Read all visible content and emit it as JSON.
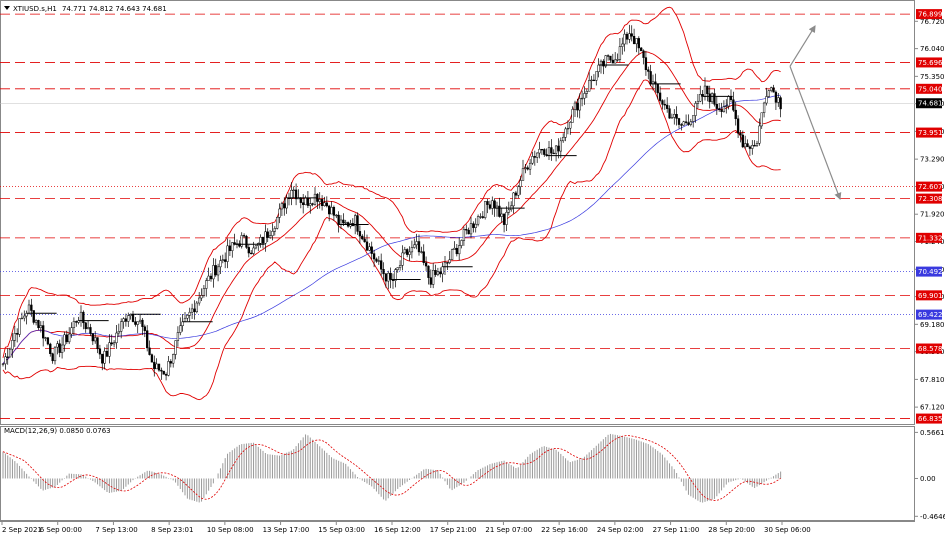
{
  "chart_data": [
    {
      "type": "candlestick",
      "title": "XTIUSD.s,H1",
      "ohlc_text": "74.771 74.812 74.643 74.681",
      "y_ticks": [
        76.72,
        76.04,
        75.35,
        74.67,
        73.98,
        73.29,
        72.61,
        71.92,
        71.24,
        70.55,
        69.87,
        69.18,
        68.5,
        67.81,
        67.12
      ],
      "ylim": [
        66.7,
        77.2
      ],
      "x_labels": [
        "2 Sep 2021",
        "6 Sep 00:00",
        "7 Sep 13:00",
        "8 Sep 23:01",
        "10 Sep 08:00",
        "13 Sep 17:00",
        "15 Sep 03:00",
        "16 Sep 12:00",
        "17 Sep 21:00",
        "21 Sep 07:00",
        "22 Sep 16:00",
        "24 Sep 02:00",
        "27 Sep 11:00",
        "28 Sep 20:00",
        "30 Sep 06:00"
      ],
      "current_price": "74.681",
      "levels": [
        {
          "value": "76.899",
          "color": "#e00000",
          "style": "dashed"
        },
        {
          "value": "75.696",
          "color": "#e00000",
          "style": "dashed"
        },
        {
          "value": "75.040",
          "color": "#e00000",
          "style": "dashed"
        },
        {
          "value": "73.951",
          "color": "#e00000",
          "style": "dashed"
        },
        {
          "value": "72.607",
          "color": "#e00000",
          "style": "dotted"
        },
        {
          "value": "72.308",
          "color": "#e00000",
          "style": "dashed"
        },
        {
          "value": "71.332",
          "color": "#e00000",
          "style": "dashed"
        },
        {
          "value": "70.492",
          "color": "#3a3adf",
          "style": "dotted"
        },
        {
          "value": "69.901",
          "color": "#e00000",
          "style": "dashed"
        },
        {
          "value": "69.422",
          "color": "#3a3adf",
          "style": "dotted"
        },
        {
          "value": "68.578",
          "color": "#e00000",
          "style": "dashed"
        },
        {
          "value": "66.835",
          "color": "#e00000",
          "style": "dashed"
        }
      ],
      "series_shape": [
        68.2,
        69.0,
        69.6,
        69.1,
        68.4,
        68.8,
        69.4,
        69.0,
        68.3,
        68.9,
        69.5,
        69.2,
        68.1,
        68.0,
        68.9,
        69.5,
        70.1,
        70.6,
        71.0,
        71.3,
        71.0,
        71.4,
        71.9,
        72.6,
        72.2,
        72.4,
        72.1,
        71.6,
        71.8,
        71.2,
        70.6,
        70.2,
        70.9,
        71.1,
        70.3,
        70.5,
        71.0,
        71.5,
        71.9,
        72.3,
        71.7,
        72.6,
        73.3,
        73.6,
        73.4,
        74.2,
        74.8,
        75.3,
        75.7,
        75.9,
        76.5,
        75.8,
        75.0,
        74.5,
        74.1,
        74.4,
        75.0,
        74.6,
        74.7,
        73.7,
        73.6,
        75.2,
        74.68
      ],
      "projection_arrows": [
        {
          "from": 75.6,
          "to": 76.6
        },
        {
          "from": 75.6,
          "to": 72.3
        }
      ]
    },
    {
      "type": "bar",
      "title": "MACD(12,26,9) 0.0850 0.0763",
      "y_ticks": [
        0.5661,
        0.0,
        -0.4646
      ],
      "ylim": [
        -0.51,
        0.62
      ],
      "values_shape": [
        0.33,
        0.2,
        0.02,
        -0.15,
        -0.1,
        0.06,
        0.05,
        -0.05,
        -0.18,
        -0.15,
        0.0,
        0.1,
        0.05,
        -0.03,
        -0.25,
        -0.3,
        -0.05,
        0.3,
        0.42,
        0.44,
        0.3,
        0.28,
        0.35,
        0.55,
        0.4,
        0.25,
        0.18,
        0.0,
        -0.1,
        -0.28,
        -0.12,
        0.0,
        0.12,
        0.1,
        -0.15,
        -0.05,
        0.1,
        0.18,
        0.22,
        0.12,
        0.3,
        0.4,
        0.35,
        0.2,
        0.25,
        0.4,
        0.55,
        0.52,
        0.48,
        0.42,
        0.3,
        0.1,
        -0.2,
        -0.3,
        -0.25,
        -0.05,
        0.0,
        -0.12,
        -0.02,
        0.085
      ]
    }
  ]
}
